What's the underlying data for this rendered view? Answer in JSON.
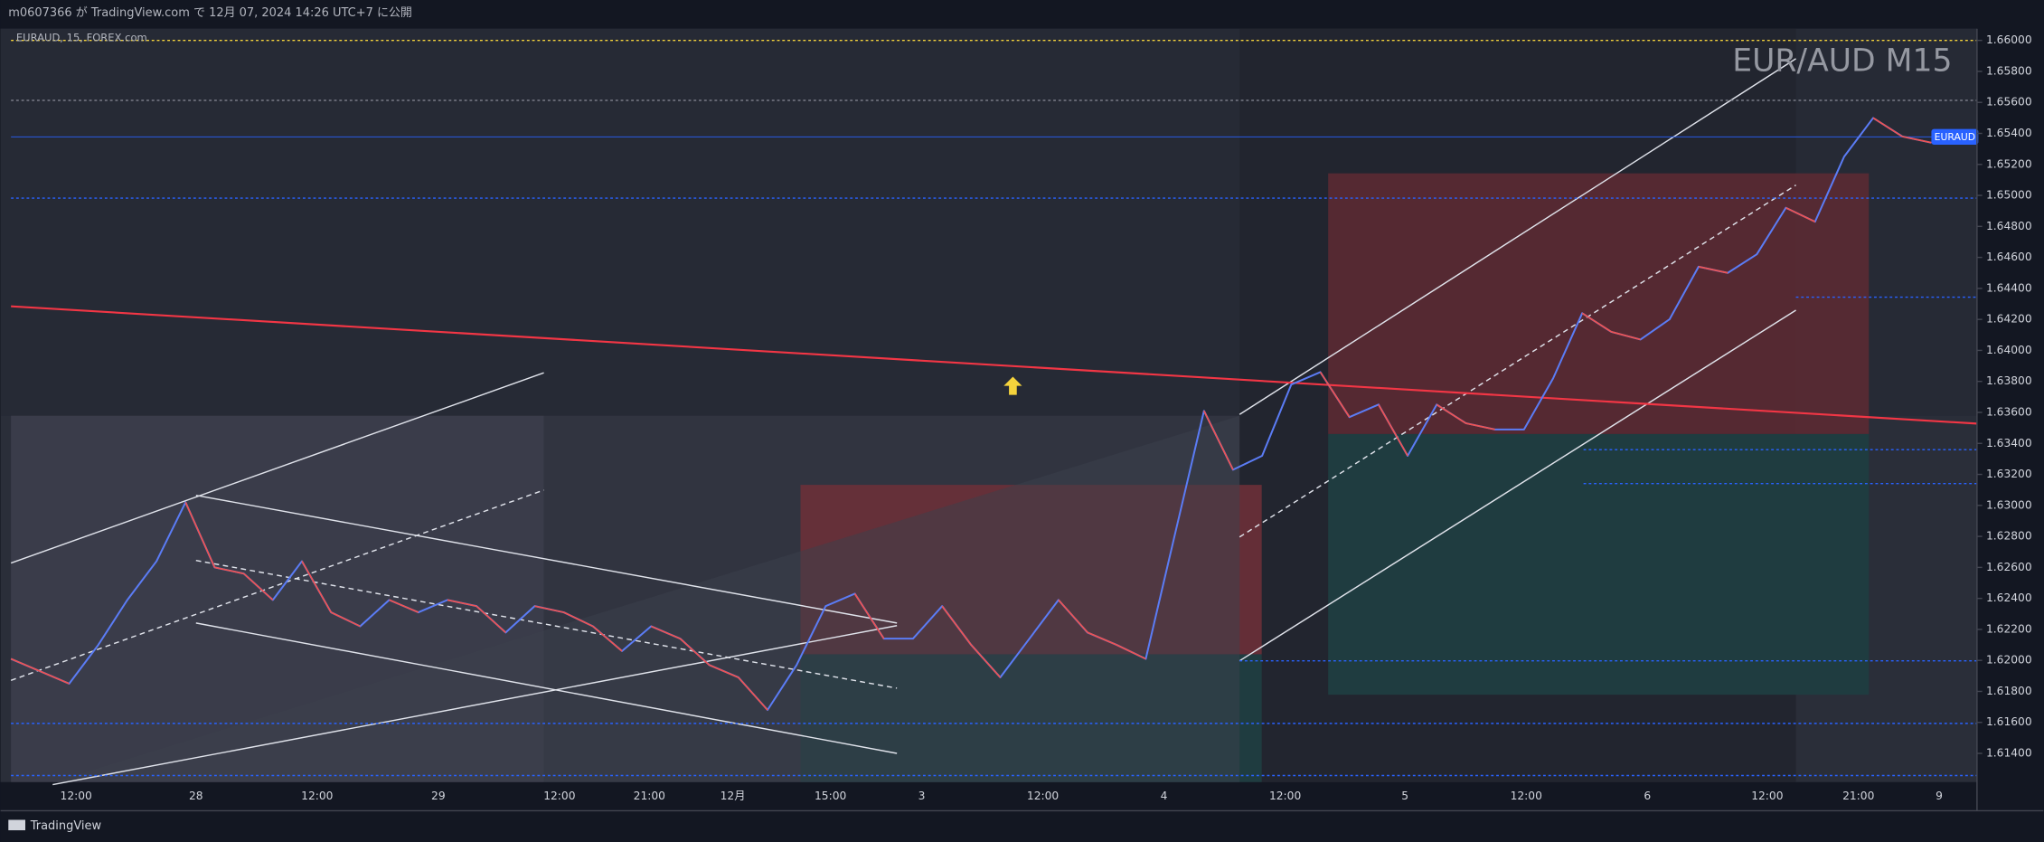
{
  "header": {
    "text": "m0607366 が TradingView.com で 12月 07, 2024 14:26 UTC+7 に公開"
  },
  "chart": {
    "symbol_label": "EURAUD, 15, FOREX.com",
    "watermark": "EUR/AUD M15",
    "price_tag": "EURAUD",
    "ylim": [
      1.612,
      1.661
    ],
    "yticks": [
      {
        "value": 1.66,
        "label": "1.66000"
      },
      {
        "value": 1.658,
        "label": "1.65800"
      },
      {
        "value": 1.656,
        "label": "1.65600"
      },
      {
        "value": 1.654,
        "label": "1.65400"
      },
      {
        "value": 1.652,
        "label": "1.65200"
      },
      {
        "value": 1.65,
        "label": "1.65000"
      },
      {
        "value": 1.648,
        "label": "1.64800"
      },
      {
        "value": 1.646,
        "label": "1.64600"
      },
      {
        "value": 1.644,
        "label": "1.64400"
      },
      {
        "value": 1.642,
        "label": "1.64200"
      },
      {
        "value": 1.64,
        "label": "1.64000"
      },
      {
        "value": 1.638,
        "label": "1.63800"
      },
      {
        "value": 1.636,
        "label": "1.63600"
      },
      {
        "value": 1.634,
        "label": "1.63400"
      },
      {
        "value": 1.632,
        "label": "1.63200"
      },
      {
        "value": 1.63,
        "label": "1.63000"
      },
      {
        "value": 1.628,
        "label": "1.62800"
      },
      {
        "value": 1.626,
        "label": "1.62600"
      },
      {
        "value": 1.624,
        "label": "1.62400"
      },
      {
        "value": 1.622,
        "label": "1.62200"
      },
      {
        "value": 1.62,
        "label": "1.62000"
      },
      {
        "value": 1.618,
        "label": "1.61800"
      },
      {
        "value": 1.616,
        "label": "1.61600"
      },
      {
        "value": 1.614,
        "label": "1.61400"
      }
    ],
    "time_labels": [
      "12:00",
      "28",
      "12:00",
      "29",
      "12:00",
      "21:00",
      "12月",
      "15:00",
      "3",
      "12:00",
      "4",
      "12:00",
      "5",
      "12:00",
      "6",
      "12:00",
      "21:00",
      "9"
    ],
    "price_trace": [
      1.6201,
      1.6193,
      1.6185,
      1.621,
      1.6239,
      1.6264,
      1.6302,
      1.626,
      1.6256,
      1.6239,
      1.6264,
      1.6231,
      1.6222,
      1.6239,
      1.6231,
      1.6239,
      1.6235,
      1.6218,
      1.6235,
      1.6231,
      1.6222,
      1.6206,
      1.6222,
      1.6214,
      1.6197,
      1.6189,
      1.6168,
      1.6197,
      1.6235,
      1.6243,
      1.6214,
      1.6214,
      1.6235,
      1.621,
      1.6189,
      1.6214,
      1.6239,
      1.6218,
      1.621,
      1.6201,
      1.6281,
      1.6361,
      1.6323,
      1.6332,
      1.6378,
      1.6386,
      1.6357,
      1.6365,
      1.6332,
      1.6365,
      1.6353,
      1.6349,
      1.6349,
      1.6382,
      1.6424,
      1.6412,
      1.6407,
      1.642,
      1.6454,
      1.645,
      1.6462,
      1.6492,
      1.6483,
      1.6525,
      1.655,
      1.6538,
      1.6534
    ]
  },
  "footer": {
    "brand": "TradingView"
  }
}
